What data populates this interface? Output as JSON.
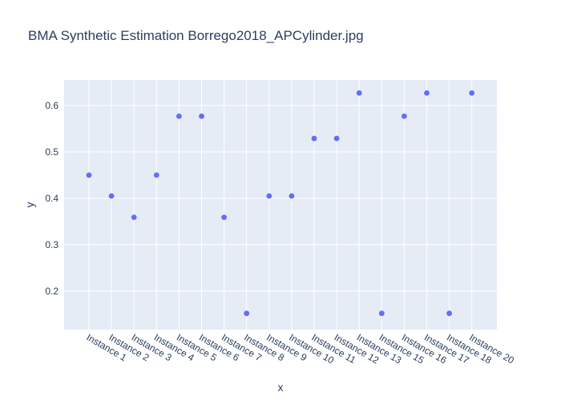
{
  "chart_data": {
    "type": "scatter",
    "title": "BMA Synthetic Estimation Borrego2018_APCylinder.jpg",
    "xlabel": "x",
    "ylabel": "y",
    "categories": [
      "Instance 1",
      "Instance 2",
      "Instance 3",
      "Instance 4",
      "Instance 5",
      "Instance 6",
      "Instance 7",
      "Instance 8",
      "Instance 9",
      "Instance 10",
      "Instance 11",
      "Instance 12",
      "Instance 13",
      "Instance 15",
      "Instance 16",
      "Instance 17",
      "Instance 18",
      "Instance 20"
    ],
    "series": [
      {
        "values": [
          0.45,
          0.405,
          0.359,
          0.45,
          0.577,
          0.577,
          0.359,
          0.152,
          0.405,
          0.405,
          0.529,
          0.529,
          0.627,
          0.152,
          0.577,
          0.627,
          0.152,
          0.627
        ],
        "color": "#636efa"
      }
    ],
    "ylim": [
      0.117,
      0.655
    ],
    "yticks": [
      "0.2",
      "0.3",
      "0.4",
      "0.5",
      "0.6"
    ],
    "ytick_values": [
      0.2,
      0.3,
      0.4,
      0.5,
      0.6
    ],
    "grid": true,
    "legend": "none",
    "colors": {
      "plot_background": "#e5ecf6",
      "grid": "#ffffff",
      "text": "#2a3f5f",
      "marker": "#636efa"
    }
  }
}
